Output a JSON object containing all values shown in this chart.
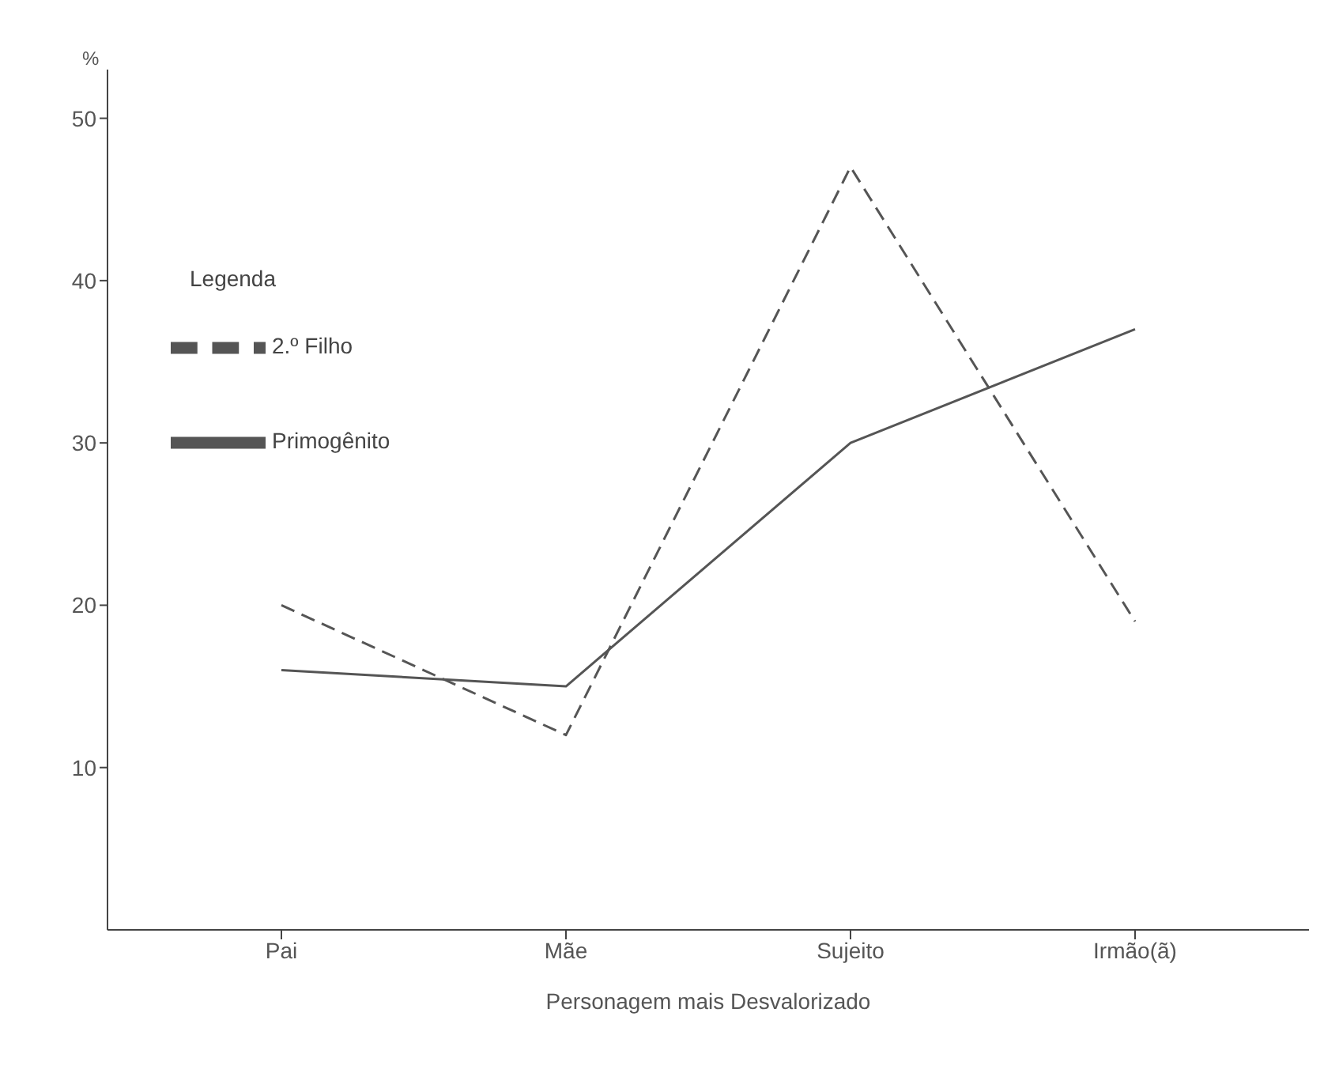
{
  "chart_data": {
    "type": "line",
    "ylabel": "%",
    "xlabel": "Personagem mais Desvalorizado",
    "legend_title": "Legenda",
    "legend": "top left",
    "categories": [
      "Pai",
      "Mãe",
      "Sujeito",
      "Irmão(ã)"
    ],
    "ylim": [
      0,
      53
    ],
    "yticks": [
      10,
      20,
      30,
      40,
      50
    ],
    "grid": false,
    "marker": "none",
    "series": [
      {
        "name": "Primogênito",
        "color": "#555555",
        "line_style": "solid",
        "values": [
          16,
          15,
          30,
          37
        ]
      },
      {
        "name": "2.º Filho",
        "color": "#555555",
        "line_style": "dashed",
        "values": [
          20,
          12,
          47,
          19
        ]
      }
    ]
  }
}
